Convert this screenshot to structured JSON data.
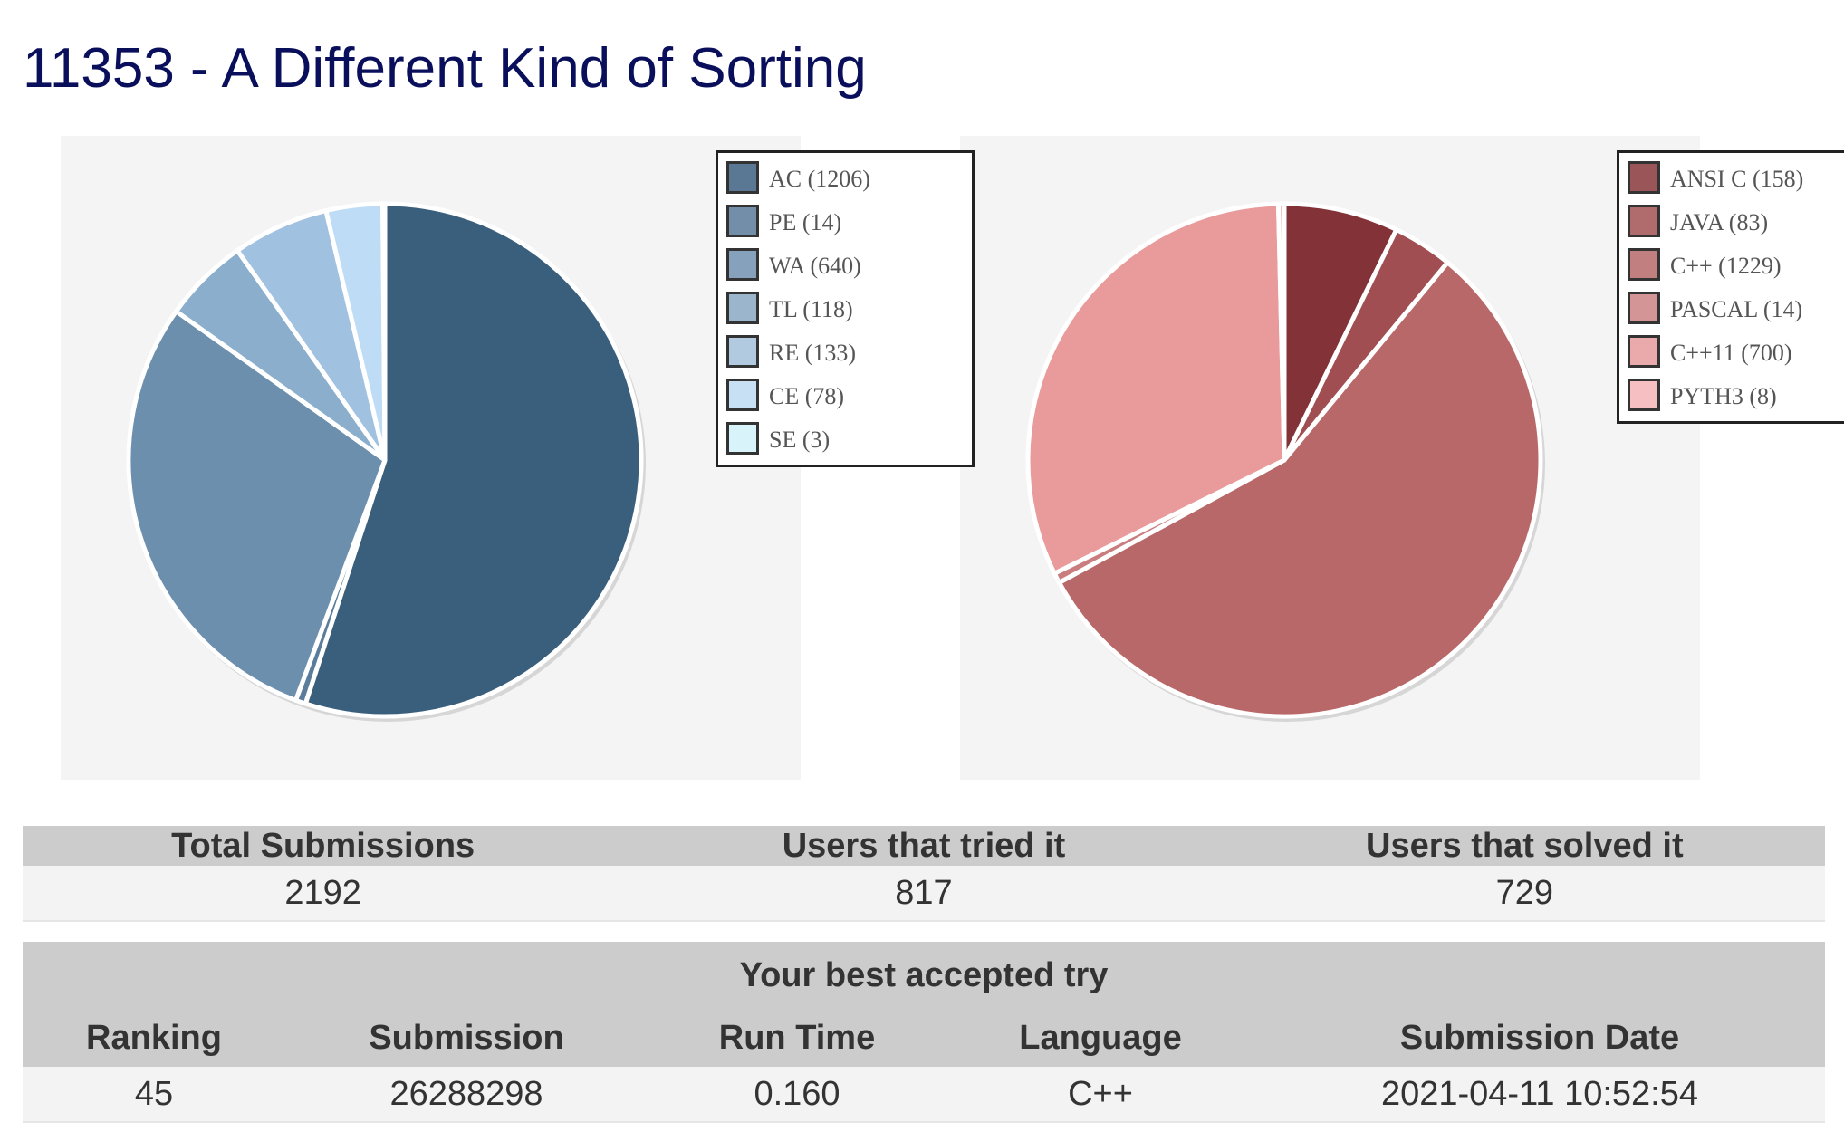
{
  "page": {
    "title": "11353 - A Different Kind of Sorting"
  },
  "chart_data": [
    {
      "type": "pie",
      "title": "",
      "labels": [
        "AC",
        "PE",
        "WA",
        "TL",
        "RE",
        "CE",
        "SE"
      ],
      "values": [
        1206,
        14,
        640,
        118,
        133,
        78,
        3
      ],
      "legend_text": [
        "AC (1206)",
        "PE (14)",
        "WA (640)",
        "TL (118)",
        "RE (133)",
        "CE (78)",
        "SE (3)"
      ],
      "colors": [
        "#3a5f7d",
        "#5b7d9c",
        "#6d8fae",
        "#8aaecb",
        "#a1c1e0",
        "#bedcf5",
        "#d6f0fa"
      ],
      "legend_colors": [
        "#5a7793",
        "#728ea8",
        "#86a1bb",
        "#9bb5cc",
        "#b1cae0",
        "#c8e0f4",
        "#d8f3fa"
      ],
      "legend_position": "top-right"
    },
    {
      "type": "pie",
      "title": "",
      "labels": [
        "ANSI C",
        "JAVA",
        "C++",
        "PASCAL",
        "C++11",
        "PYTH3"
      ],
      "values": [
        158,
        83,
        1229,
        14,
        700,
        8
      ],
      "legend_text": [
        "ANSI C (158)",
        "JAVA (83)",
        "C++ (1229)",
        "PASCAL (14)",
        "C++11 (700)",
        "PYTH3 (8)"
      ],
      "colors": [
        "#833338",
        "#a04e51",
        "#b86868",
        "#c97d7e",
        "#e99a9a",
        "#f3b3b5"
      ],
      "legend_colors": [
        "#9a5559",
        "#b06b6d",
        "#c27f80",
        "#d39596",
        "#eaaaab",
        "#f6c0c2"
      ],
      "legend_position": "top-right"
    }
  ],
  "stats": {
    "headers": [
      "Total Submissions",
      "Users that tried it",
      "Users that solved it"
    ],
    "values": [
      "2192",
      "817",
      "729"
    ]
  },
  "best_try": {
    "caption": "Your best accepted try",
    "headers": [
      "Ranking",
      "Submission",
      "Run Time",
      "Language",
      "Submission Date"
    ],
    "values": [
      "45",
      "26288298",
      "0.160",
      "C++",
      "2021-04-11 10:52:54"
    ]
  }
}
